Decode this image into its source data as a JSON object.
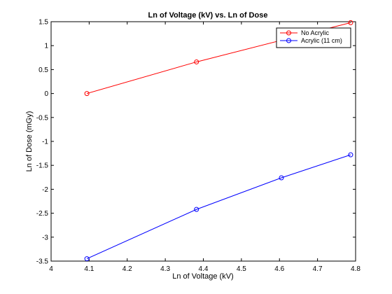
{
  "chart_data": {
    "type": "line",
    "title": "Ln of Voltage (kV) vs. Ln of Dose",
    "xlabel": "Ln of Voltage (kV)",
    "ylabel": "Ln of Dose (mGy)",
    "xlim": [
      4,
      4.8
    ],
    "ylim": [
      -3.5,
      1.5
    ],
    "xticks": [
      "4",
      "4.1",
      "4.2",
      "4.3",
      "4.4",
      "4.5",
      "4.6",
      "4.7",
      "4.8"
    ],
    "yticks": [
      "-3.5",
      "-3",
      "-2.5",
      "-2",
      "-1.5",
      "-1",
      "-0.5",
      "0",
      "0.5",
      "1",
      "1.5"
    ],
    "grid": false,
    "legend_position": "top-right",
    "series": [
      {
        "name": "No Acrylic",
        "color": "#ff0000",
        "x": [
          4.094,
          4.382,
          4.787
        ],
        "y": [
          0.0,
          0.66,
          1.48
        ]
      },
      {
        "name": "Acrylic (11 cm)",
        "color": "#0000ff",
        "x": [
          4.094,
          4.382,
          4.605,
          4.787
        ],
        "y": [
          -3.45,
          -2.42,
          -1.76,
          -1.28
        ]
      }
    ]
  }
}
